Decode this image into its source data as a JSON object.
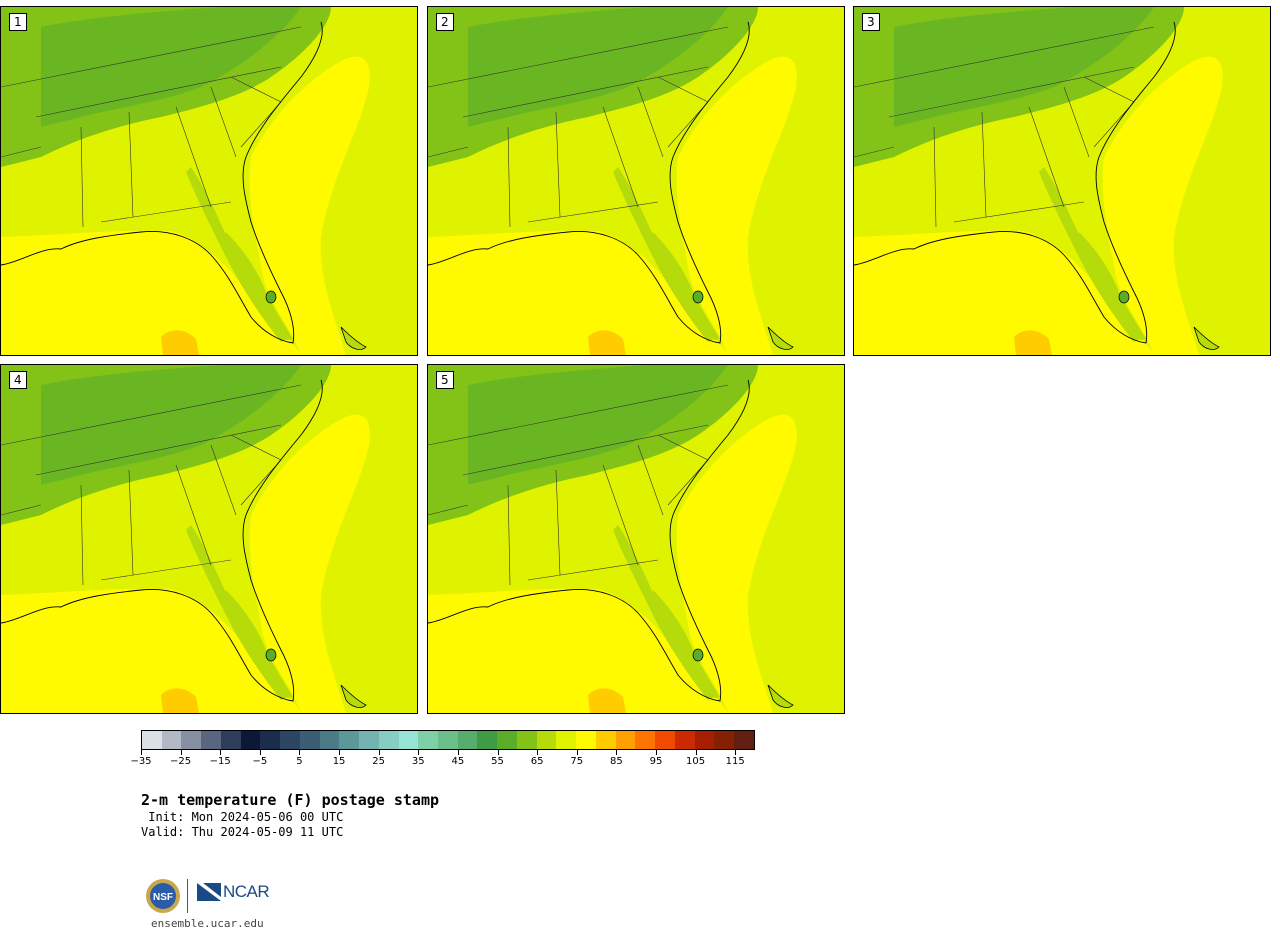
{
  "panels": [
    {
      "label": "1"
    },
    {
      "label": "2"
    },
    {
      "label": "3"
    },
    {
      "label": "4"
    },
    {
      "label": "5"
    }
  ],
  "colorbar": {
    "colors": [
      "#dbe0e6",
      "#b3b8c6",
      "#878fa2",
      "#5a6680",
      "#2f3d5c",
      "#0d1838",
      "#1c2c4c",
      "#2c4563",
      "#3b5e74",
      "#4c7a87",
      "#5c9799",
      "#72b3b0",
      "#87cdc1",
      "#96e4d4",
      "#7ed0a8",
      "#6cbf8a",
      "#57ad6b",
      "#3f9b44",
      "#5aad29",
      "#83c317",
      "#b6db0a",
      "#dff300",
      "#fffa00",
      "#ffcc00",
      "#ffa000",
      "#ff7400",
      "#f04a00",
      "#cc2a00",
      "#a61e00",
      "#852000",
      "#621e10"
    ],
    "tick_labels": [
      "−35",
      "−25",
      "−15",
      "−5",
      "5",
      "15",
      "25",
      "35",
      "45",
      "55",
      "65",
      "75",
      "85",
      "95",
      "105",
      "115"
    ]
  },
  "title": "2-m temperature (F) postage stamp",
  "init": " Init: Mon 2024-05-06 00 UTC",
  "valid": "Valid: Thu 2024-05-09 11 UTC",
  "logos": {
    "nsf": "NSF",
    "ncar": "NCAR"
  },
  "url": "ensemble.ucar.edu"
}
